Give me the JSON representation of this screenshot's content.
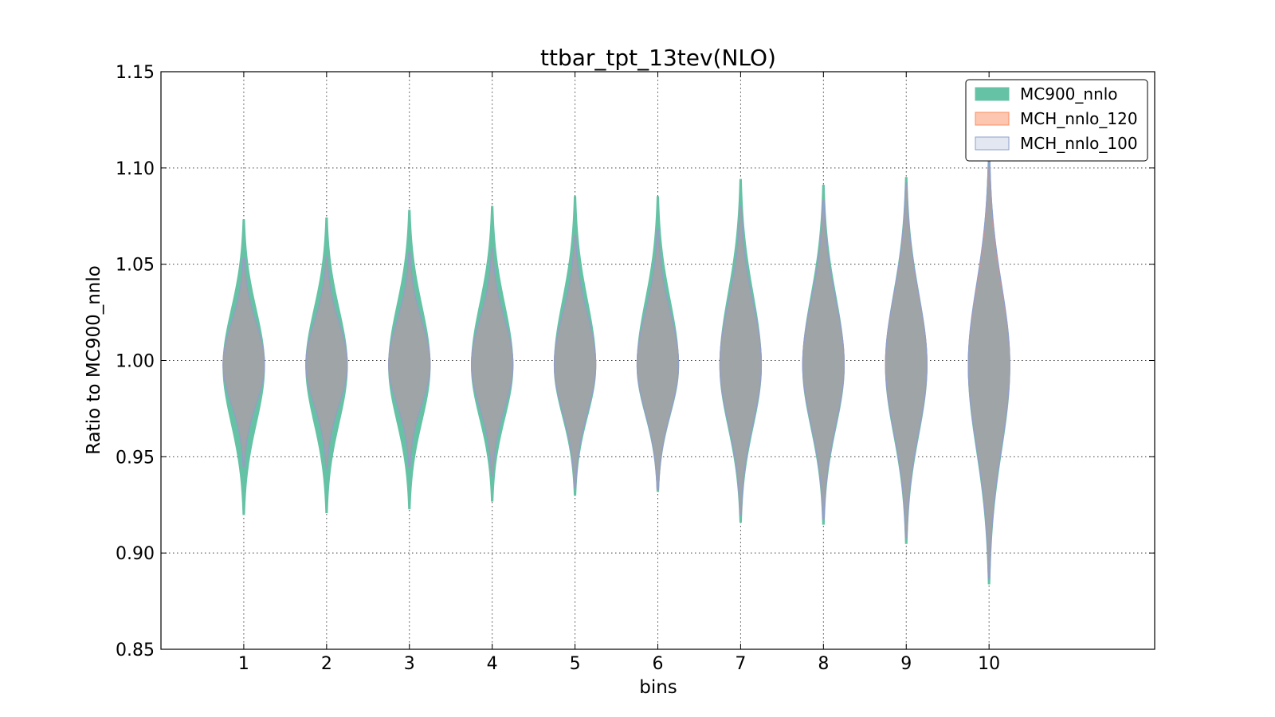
{
  "chart_data": {
    "type": "violin",
    "title": "ttbar_tpt_13tev(NLO)",
    "xlabel": "bins",
    "ylabel": "Ratio to MC900_nnlo",
    "categories": [
      "1",
      "2",
      "3",
      "4",
      "5",
      "6",
      "7",
      "8",
      "9",
      "10"
    ],
    "x": [
      1,
      2,
      3,
      4,
      5,
      6,
      7,
      8,
      9,
      10
    ],
    "xlim": [
      0,
      12
    ],
    "ylim": [
      0.85,
      1.15
    ],
    "yticks": [
      0.85,
      0.9,
      0.95,
      1.0,
      1.05,
      1.1,
      1.15
    ],
    "ytick_labels": [
      "0.85",
      "0.90",
      "0.95",
      "1.00",
      "1.05",
      "1.10",
      "1.15"
    ],
    "grid": true,
    "legend_position": "top-right",
    "series": [
      {
        "name": "MC900_nnlo",
        "color": "#66c2a5",
        "violins": [
          {
            "x": 1,
            "min": 0.92,
            "max": 1.073,
            "center": 0.997,
            "halfwidth": 0.25
          },
          {
            "x": 2,
            "min": 0.921,
            "max": 1.074,
            "center": 0.997,
            "halfwidth": 0.25
          },
          {
            "x": 3,
            "min": 0.923,
            "max": 1.078,
            "center": 0.997,
            "halfwidth": 0.25
          },
          {
            "x": 4,
            "min": 0.927,
            "max": 1.08,
            "center": 0.997,
            "halfwidth": 0.25
          },
          {
            "x": 5,
            "min": 0.93,
            "max": 1.085,
            "center": 0.997,
            "halfwidth": 0.25
          },
          {
            "x": 6,
            "min": 0.932,
            "max": 1.085,
            "center": 0.997,
            "halfwidth": 0.25
          },
          {
            "x": 7,
            "min": 0.916,
            "max": 1.094,
            "center": 0.997,
            "halfwidth": 0.25
          },
          {
            "x": 8,
            "min": 0.915,
            "max": 1.091,
            "center": 0.997,
            "halfwidth": 0.25
          },
          {
            "x": 9,
            "min": 0.905,
            "max": 1.095,
            "center": 0.997,
            "halfwidth": 0.25
          },
          {
            "x": 10,
            "min": 0.884,
            "max": 1.105,
            "center": 0.997,
            "halfwidth": 0.25
          }
        ]
      },
      {
        "name": "MCH_nnlo_120",
        "color": "#fc8d62",
        "violins": [
          {
            "x": 1,
            "min": 0.945,
            "max": 1.053,
            "center": 0.998,
            "halfwidth": 0.25
          },
          {
            "x": 2,
            "min": 0.944,
            "max": 1.054,
            "center": 0.998,
            "halfwidth": 0.25
          },
          {
            "x": 3,
            "min": 0.945,
            "max": 1.056,
            "center": 0.998,
            "halfwidth": 0.25
          },
          {
            "x": 4,
            "min": 0.94,
            "max": 1.058,
            "center": 0.998,
            "halfwidth": 0.25
          },
          {
            "x": 5,
            "min": 0.934,
            "max": 1.065,
            "center": 0.998,
            "halfwidth": 0.25
          },
          {
            "x": 6,
            "min": 0.933,
            "max": 1.068,
            "center": 0.998,
            "halfwidth": 0.25
          },
          {
            "x": 7,
            "min": 0.92,
            "max": 1.08,
            "center": 0.998,
            "halfwidth": 0.25
          },
          {
            "x": 8,
            "min": 0.918,
            "max": 1.083,
            "center": 0.998,
            "halfwidth": 0.25
          },
          {
            "x": 9,
            "min": 0.908,
            "max": 1.09,
            "center": 0.998,
            "halfwidth": 0.25
          },
          {
            "x": 10,
            "min": 0.888,
            "max": 1.1,
            "center": 0.998,
            "halfwidth": 0.25
          }
        ]
      },
      {
        "name": "MCH_nnlo_100",
        "color": "#8da0cb",
        "violins": [
          {
            "x": 1,
            "min": 0.945,
            "max": 1.053,
            "center": 0.998,
            "halfwidth": 0.25
          },
          {
            "x": 2,
            "min": 0.944,
            "max": 1.054,
            "center": 0.998,
            "halfwidth": 0.25
          },
          {
            "x": 3,
            "min": 0.945,
            "max": 1.056,
            "center": 0.998,
            "halfwidth": 0.25
          },
          {
            "x": 4,
            "min": 0.94,
            "max": 1.058,
            "center": 0.998,
            "halfwidth": 0.25
          },
          {
            "x": 5,
            "min": 0.934,
            "max": 1.065,
            "center": 0.998,
            "halfwidth": 0.25
          },
          {
            "x": 6,
            "min": 0.933,
            "max": 1.068,
            "center": 0.998,
            "halfwidth": 0.25
          },
          {
            "x": 7,
            "min": 0.92,
            "max": 1.08,
            "center": 0.998,
            "halfwidth": 0.25
          },
          {
            "x": 8,
            "min": 0.918,
            "max": 1.083,
            "center": 0.998,
            "halfwidth": 0.25
          },
          {
            "x": 9,
            "min": 0.908,
            "max": 1.092,
            "center": 0.998,
            "halfwidth": 0.25
          },
          {
            "x": 10,
            "min": 0.887,
            "max": 1.105,
            "center": 0.998,
            "halfwidth": 0.25
          }
        ]
      }
    ]
  }
}
